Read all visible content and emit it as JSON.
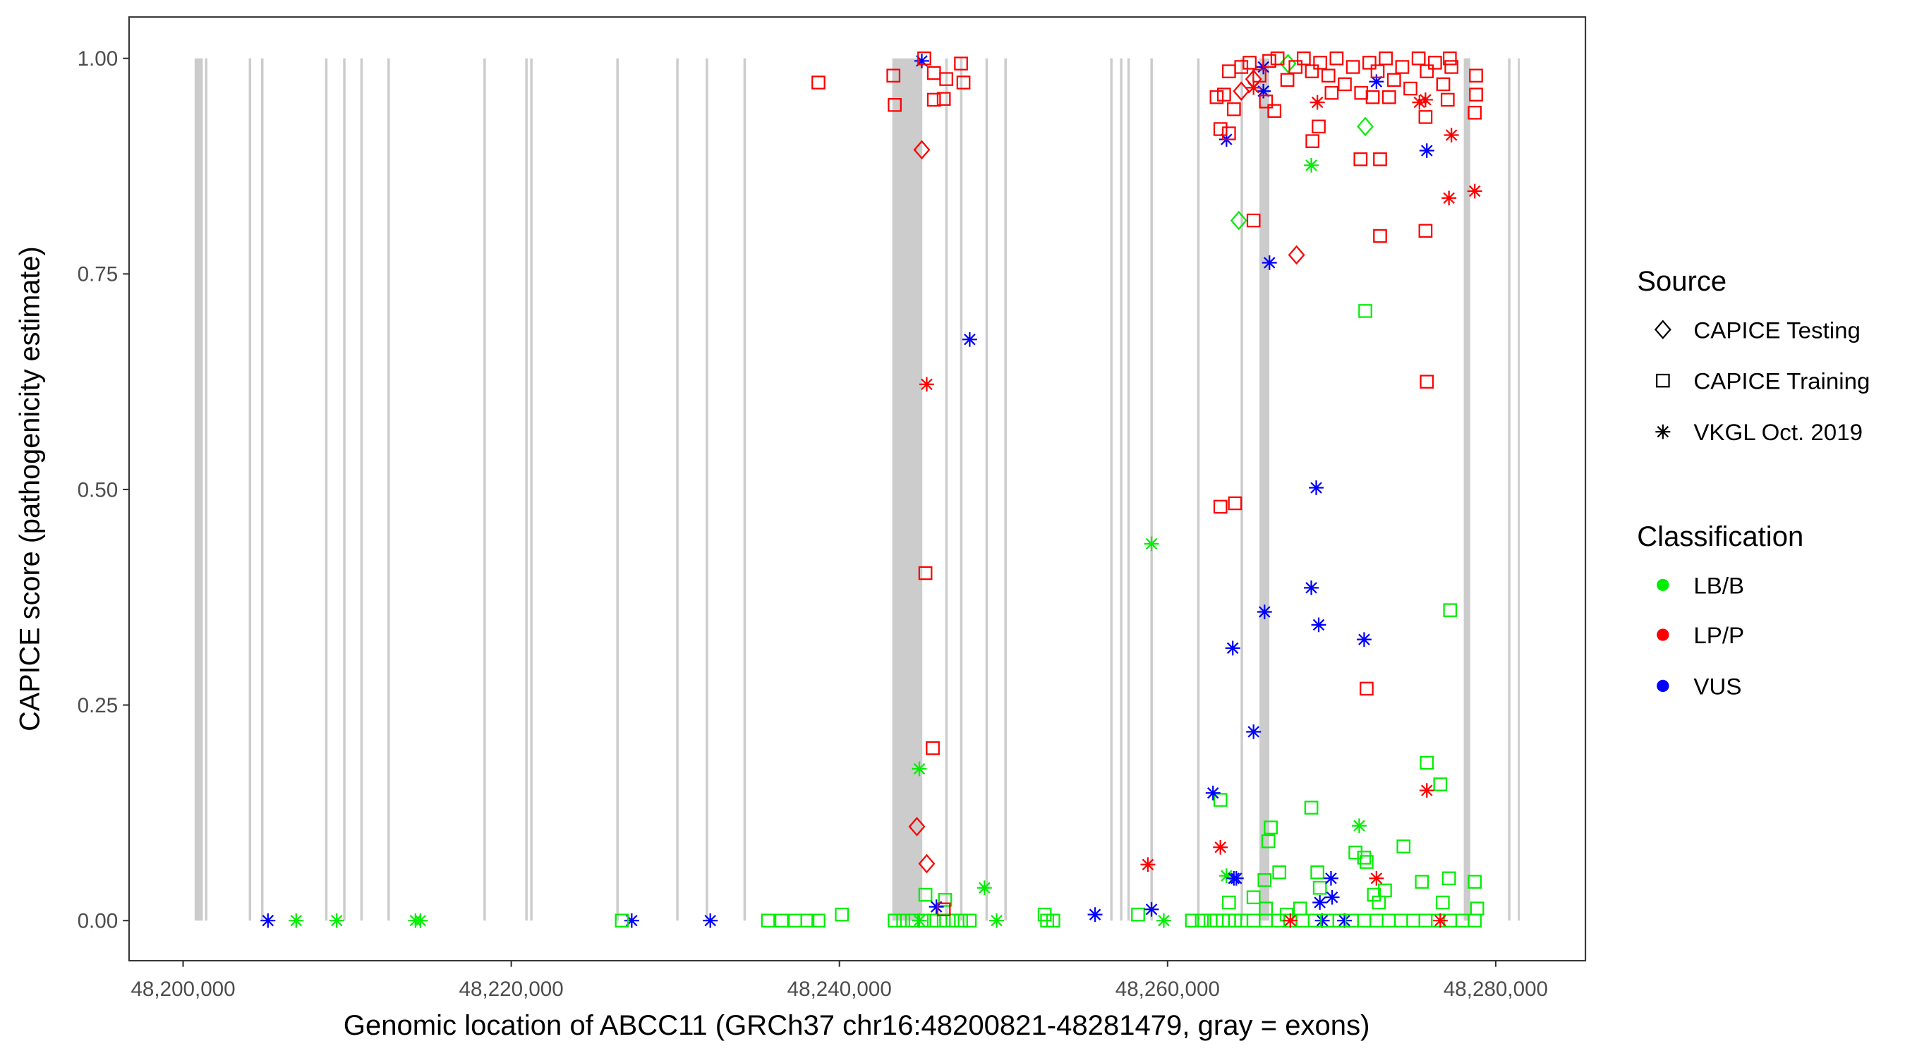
{
  "chart_data": {
    "type": "scatter",
    "xlabel": "Genomic location of ABCC11 (GRCh37 chr16:48200821-48281479, gray = exons)",
    "ylabel": "CAPICE score (pathogenicity estimate)",
    "xlim": [
      48196700,
      48285300
    ],
    "ylim": [
      -0.047,
      1.05
    ],
    "x_ticks": [
      {
        "value": 48200000,
        "label": "48,200,000"
      },
      {
        "value": 48220000,
        "label": "48,220,000"
      },
      {
        "value": 48240000,
        "label": "48,240,000"
      },
      {
        "value": 48260000,
        "label": "48,260,000"
      },
      {
        "value": 48280000,
        "label": "48,280,000"
      }
    ],
    "y_ticks": [
      {
        "value": 0,
        "label": "0.00"
      },
      {
        "value": 0.25,
        "label": "0.25"
      },
      {
        "value": 0.5,
        "label": "0.50"
      },
      {
        "value": 0.75,
        "label": "0.75"
      },
      {
        "value": 1.0,
        "label": "1.00"
      }
    ],
    "grid": false,
    "legend_placement": "right",
    "legend": {
      "source_title": "Source",
      "sources": [
        {
          "label": "CAPICE Testing",
          "shape": "diamond"
        },
        {
          "label": "CAPICE Training",
          "shape": "square"
        },
        {
          "label": "VKGL Oct. 2019",
          "shape": "asterisk"
        }
      ],
      "class_title": "Classification",
      "classes": [
        {
          "label": "LB/B",
          "color": "#00EE00"
        },
        {
          "label": "LP/P",
          "color": "#FF0000"
        },
        {
          "label": "VUS",
          "color": "#0000FF"
        }
      ]
    },
    "exon_color": "#CCCCCC",
    "exons": [
      [
        48200700,
        48201200
      ],
      [
        48201330,
        48201480
      ],
      [
        48204000,
        48204150
      ],
      [
        48204750,
        48204900
      ],
      [
        48208650,
        48208800
      ],
      [
        48209750,
        48209900
      ],
      [
        48210800,
        48210950
      ],
      [
        48212450,
        48212600
      ],
      [
        48218300,
        48218450
      ],
      [
        48220850,
        48221000
      ],
      [
        48221150,
        48221300
      ],
      [
        48226400,
        48226550
      ],
      [
        48230050,
        48230200
      ],
      [
        48231850,
        48232000
      ],
      [
        48234150,
        48234300
      ],
      [
        48243220,
        48245050
      ],
      [
        48246450,
        48246600
      ],
      [
        48247350,
        48247500
      ],
      [
        48248900,
        48249050
      ],
      [
        48250050,
        48250200
      ],
      [
        48256500,
        48256650
      ],
      [
        48257100,
        48257250
      ],
      [
        48257550,
        48257700
      ],
      [
        48258950,
        48259100
      ],
      [
        48261800,
        48261950
      ],
      [
        48264450,
        48264600
      ],
      [
        48265600,
        48266200
      ],
      [
        48278050,
        48278450
      ],
      [
        48280750,
        48280900
      ],
      [
        48281350,
        48281450
      ]
    ],
    "point_fields": [
      "position",
      "score",
      "source_index",
      "class_index"
    ],
    "points": [
      [
        48206890,
        0,
        2,
        0
      ],
      [
        48209360,
        0,
        2,
        0
      ],
      [
        48214160,
        0,
        2,
        0
      ],
      [
        48214460,
        0,
        2,
        0
      ],
      [
        48244870,
        0,
        2,
        0
      ],
      [
        48249580,
        0,
        2,
        0
      ],
      [
        48259770,
        0,
        2,
        0
      ],
      [
        48205170,
        0,
        2,
        2
      ],
      [
        48227340,
        0,
        2,
        2
      ],
      [
        48232130,
        0,
        2,
        2
      ],
      [
        48269430,
        0,
        2,
        2
      ],
      [
        48270780,
        0,
        2,
        2
      ],
      [
        48226740,
        0,
        1,
        0
      ],
      [
        48235650,
        0,
        1,
        0
      ],
      [
        48236480,
        0,
        1,
        0
      ],
      [
        48237300,
        0,
        1,
        0
      ],
      [
        48238050,
        0,
        1,
        0
      ],
      [
        48238720,
        0,
        1,
        0
      ],
      [
        48243370,
        0,
        1,
        0
      ],
      [
        48243890,
        0,
        1,
        0
      ],
      [
        48244420,
        0,
        1,
        0
      ],
      [
        48245170,
        0,
        1,
        0
      ],
      [
        48245760,
        0,
        1,
        0
      ],
      [
        48246360,
        0,
        1,
        0
      ],
      [
        48246890,
        0,
        1,
        0
      ],
      [
        48247410,
        0,
        1,
        0
      ],
      [
        48247940,
        0,
        1,
        0
      ],
      [
        48252660,
        0,
        1,
        0
      ],
      [
        48253030,
        0,
        1,
        0
      ],
      [
        48261490,
        0,
        1,
        0
      ],
      [
        48262090,
        0,
        1,
        0
      ],
      [
        48262620,
        0,
        1,
        0
      ],
      [
        48262990,
        0,
        1,
        0
      ],
      [
        48263370,
        0,
        1,
        0
      ],
      [
        48263740,
        0,
        1,
        0
      ],
      [
        48264110,
        0,
        1,
        0
      ],
      [
        48264490,
        0,
        1,
        0
      ],
      [
        48265240,
        0,
        1,
        0
      ],
      [
        48265990,
        0,
        1,
        0
      ],
      [
        48266740,
        0,
        1,
        0
      ],
      [
        48267480,
        0,
        1,
        0
      ],
      [
        48268230,
        0,
        1,
        0
      ],
      [
        48268980,
        0,
        1,
        0
      ],
      [
        48269730,
        0,
        1,
        0
      ],
      [
        48270480,
        0,
        1,
        0
      ],
      [
        48271230,
        0,
        1,
        0
      ],
      [
        48271980,
        0,
        1,
        0
      ],
      [
        48272730,
        0,
        1,
        0
      ],
      [
        48273480,
        0,
        1,
        0
      ],
      [
        48274230,
        0,
        1,
        0
      ],
      [
        48274980,
        0,
        1,
        0
      ],
      [
        48275720,
        0,
        1,
        0
      ],
      [
        48276470,
        0,
        1,
        0
      ],
      [
        48277220,
        0,
        1,
        0
      ],
      [
        48277970,
        0,
        1,
        0
      ],
      [
        48278720,
        0,
        1,
        0
      ],
      [
        48240150,
        0.007,
        1,
        0
      ],
      [
        48245240,
        0.03,
        1,
        0
      ],
      [
        48246440,
        0.024,
        1,
        0
      ],
      [
        48252510,
        0.007,
        1,
        0
      ],
      [
        48258200,
        0.007,
        1,
        0
      ],
      [
        48263220,
        0.14,
        1,
        0
      ],
      [
        48263740,
        0.021,
        1,
        0
      ],
      [
        48265240,
        0.027,
        1,
        0
      ],
      [
        48265910,
        0.047,
        1,
        0
      ],
      [
        48266140,
        0.092,
        1,
        0
      ],
      [
        48266290,
        0.108,
        1,
        0
      ],
      [
        48266810,
        0.056,
        1,
        0
      ],
      [
        48265990,
        0.014,
        1,
        0
      ],
      [
        48267260,
        0.007,
        1,
        0
      ],
      [
        48268080,
        0.014,
        1,
        0
      ],
      [
        48268760,
        0.131,
        1,
        0
      ],
      [
        48269130,
        0.056,
        1,
        0
      ],
      [
        48269280,
        0.038,
        1,
        0
      ],
      [
        48271450,
        0.079,
        1,
        0
      ],
      [
        48271980,
        0.073,
        1,
        0
      ],
      [
        48272130,
        0.068,
        1,
        0
      ],
      [
        48272580,
        0.03,
        1,
        0
      ],
      [
        48272880,
        0.021,
        1,
        0
      ],
      [
        48273250,
        0.035,
        1,
        0
      ],
      [
        48274380,
        0.086,
        1,
        0
      ],
      [
        48275500,
        0.045,
        1,
        0
      ],
      [
        48275800,
        0.183,
        1,
        0
      ],
      [
        48276620,
        0.158,
        1,
        0
      ],
      [
        48276770,
        0.021,
        1,
        0
      ],
      [
        48277150,
        0.049,
        1,
        0
      ],
      [
        48277220,
        0.36,
        1,
        0
      ],
      [
        48278720,
        0.045,
        1,
        0
      ],
      [
        48278870,
        0.014,
        1,
        0
      ],
      [
        48272050,
        0.707,
        1,
        0
      ],
      [
        48244870,
        0.176,
        2,
        0
      ],
      [
        48248840,
        0.038,
        2,
        0
      ],
      [
        48259020,
        0.437,
        2,
        0
      ],
      [
        48263590,
        0.052,
        2,
        0
      ],
      [
        48268760,
        0.876,
        2,
        0
      ],
      [
        48271680,
        0.11,
        2,
        0
      ],
      [
        48264340,
        0.812,
        0,
        0
      ],
      [
        48272050,
        0.921,
        0,
        0
      ],
      [
        48267340,
        0.994,
        0,
        0
      ],
      [
        48245910,
        0.016,
        2,
        2
      ],
      [
        48245020,
        0.997,
        2,
        2
      ],
      [
        48247940,
        0.674,
        2,
        2
      ],
      [
        48255580,
        0.007,
        2,
        2
      ],
      [
        48259020,
        0.013,
        2,
        2
      ],
      [
        48262770,
        0.148,
        2,
        2
      ],
      [
        48264040,
        0.049,
        2,
        2
      ],
      [
        48264190,
        0.049,
        2,
        2
      ],
      [
        48265240,
        0.219,
        2,
        2
      ],
      [
        48263970,
        0.316,
        2,
        2
      ],
      [
        48265910,
        0.358,
        2,
        2
      ],
      [
        48268760,
        0.386,
        2,
        2
      ],
      [
        48269210,
        0.343,
        2,
        2
      ],
      [
        48271980,
        0.326,
        2,
        2
      ],
      [
        48269060,
        0.502,
        2,
        2
      ],
      [
        48266210,
        0.763,
        2,
        2
      ],
      [
        48263590,
        0.906,
        2,
        2
      ],
      [
        48275800,
        0.893,
        2,
        2
      ],
      [
        48265840,
        0.962,
        2,
        2
      ],
      [
        48265840,
        0.99,
        2,
        2
      ],
      [
        48272730,
        0.973,
        2,
        2
      ],
      [
        48269280,
        0.021,
        2,
        2
      ],
      [
        48270030,
        0.027,
        2,
        2
      ],
      [
        48269960,
        0.049,
        2,
        2
      ],
      [
        48245320,
        0.622,
        2,
        1
      ],
      [
        48258800,
        0.065,
        2,
        1
      ],
      [
        48263220,
        0.085,
        2,
        1
      ],
      [
        48267480,
        0,
        2,
        1
      ],
      [
        48272730,
        0.049,
        2,
        1
      ],
      [
        48275800,
        0.151,
        2,
        1
      ],
      [
        48276620,
        0,
        2,
        1
      ],
      [
        48277150,
        0.838,
        2,
        1
      ],
      [
        48278720,
        0.846,
        2,
        1
      ],
      [
        48277300,
        0.911,
        2,
        1
      ],
      [
        48269130,
        0.949,
        2,
        1
      ],
      [
        48275350,
        0.949,
        2,
        1
      ],
      [
        48275720,
        0.952,
        2,
        1
      ],
      [
        48265240,
        0.966,
        2,
        1
      ],
      [
        48245020,
        0.894,
        0,
        1
      ],
      [
        48244720,
        0.109,
        0,
        1
      ],
      [
        48245320,
        0.066,
        0,
        1
      ],
      [
        48267860,
        0.772,
        0,
        1
      ],
      [
        48264490,
        0.962,
        0,
        1
      ],
      [
        48265240,
        0.976,
        0,
        1
      ],
      [
        48238720,
        0.972,
        1,
        1
      ],
      [
        48243290,
        0.98,
        1,
        1
      ],
      [
        48243370,
        0.946,
        1,
        1
      ],
      [
        48245170,
        1.0,
        1,
        1
      ],
      [
        48245240,
        0.403,
        1,
        1
      ],
      [
        48245690,
        0.2,
        1,
        1
      ],
      [
        48245760,
        0.952,
        1,
        1
      ],
      [
        48246360,
        0.953,
        1,
        1
      ],
      [
        48245760,
        0.983,
        1,
        1
      ],
      [
        48246510,
        0.976,
        1,
        1
      ],
      [
        48247410,
        0.994,
        1,
        1
      ],
      [
        48247560,
        0.972,
        1,
        1
      ],
      [
        48246360,
        0.013,
        1,
        1
      ],
      [
        48263220,
        0.48,
        1,
        1
      ],
      [
        48264110,
        0.484,
        1,
        1
      ],
      [
        48272130,
        0.269,
        1,
        1
      ],
      [
        48275800,
        0.625,
        1,
        1
      ],
      [
        48272950,
        0.794,
        1,
        1
      ],
      [
        48275720,
        0.8,
        1,
        1
      ],
      [
        48265240,
        0.812,
        1,
        1
      ],
      [
        48271760,
        0.883,
        1,
        1
      ],
      [
        48272950,
        0.883,
        1,
        1
      ],
      [
        48268830,
        0.904,
        1,
        1
      ],
      [
        48269210,
        0.921,
        1,
        1
      ],
      [
        48266510,
        0.939,
        1,
        1
      ],
      [
        48263220,
        0.918,
        1,
        1
      ],
      [
        48263740,
        0.913,
        1,
        1
      ],
      [
        48264040,
        0.941,
        1,
        1
      ],
      [
        48262990,
        0.955,
        1,
        1
      ],
      [
        48263440,
        0.958,
        1,
        1
      ],
      [
        48275720,
        0.932,
        1,
        1
      ],
      [
        48277070,
        0.952,
        1,
        1
      ],
      [
        48278720,
        0.937,
        1,
        1
      ],
      [
        48278800,
        0.958,
        1,
        1
      ],
      [
        48278800,
        0.98,
        1,
        1
      ],
      [
        48263740,
        0.985,
        1,
        1
      ],
      [
        48264490,
        0.99,
        1,
        1
      ],
      [
        48265000,
        0.995,
        1,
        1
      ],
      [
        48265600,
        0.98,
        1,
        1
      ],
      [
        48266200,
        0.997,
        1,
        1
      ],
      [
        48266700,
        1.0,
        1,
        1
      ],
      [
        48267300,
        0.975,
        1,
        1
      ],
      [
        48267800,
        0.99,
        1,
        1
      ],
      [
        48268300,
        1.0,
        1,
        1
      ],
      [
        48268800,
        0.985,
        1,
        1
      ],
      [
        48269300,
        0.995,
        1,
        1
      ],
      [
        48269800,
        0.98,
        1,
        1
      ],
      [
        48270300,
        1.0,
        1,
        1
      ],
      [
        48270800,
        0.97,
        1,
        1
      ],
      [
        48271300,
        0.99,
        1,
        1
      ],
      [
        48271800,
        0.96,
        1,
        1
      ],
      [
        48272300,
        0.995,
        1,
        1
      ],
      [
        48272800,
        0.985,
        1,
        1
      ],
      [
        48273300,
        1.0,
        1,
        1
      ],
      [
        48273800,
        0.975,
        1,
        1
      ],
      [
        48274300,
        0.99,
        1,
        1
      ],
      [
        48274800,
        0.965,
        1,
        1
      ],
      [
        48275300,
        1.0,
        1,
        1
      ],
      [
        48275800,
        0.985,
        1,
        1
      ],
      [
        48276300,
        0.995,
        1,
        1
      ],
      [
        48276800,
        0.97,
        1,
        1
      ],
      [
        48277200,
        1.0,
        1,
        1
      ],
      [
        48277300,
        0.99,
        1,
        1
      ],
      [
        48266000,
        0.95,
        1,
        1
      ],
      [
        48270000,
        0.96,
        1,
        1
      ],
      [
        48272500,
        0.955,
        1,
        1
      ],
      [
        48273500,
        0.955,
        1,
        1
      ]
    ]
  }
}
